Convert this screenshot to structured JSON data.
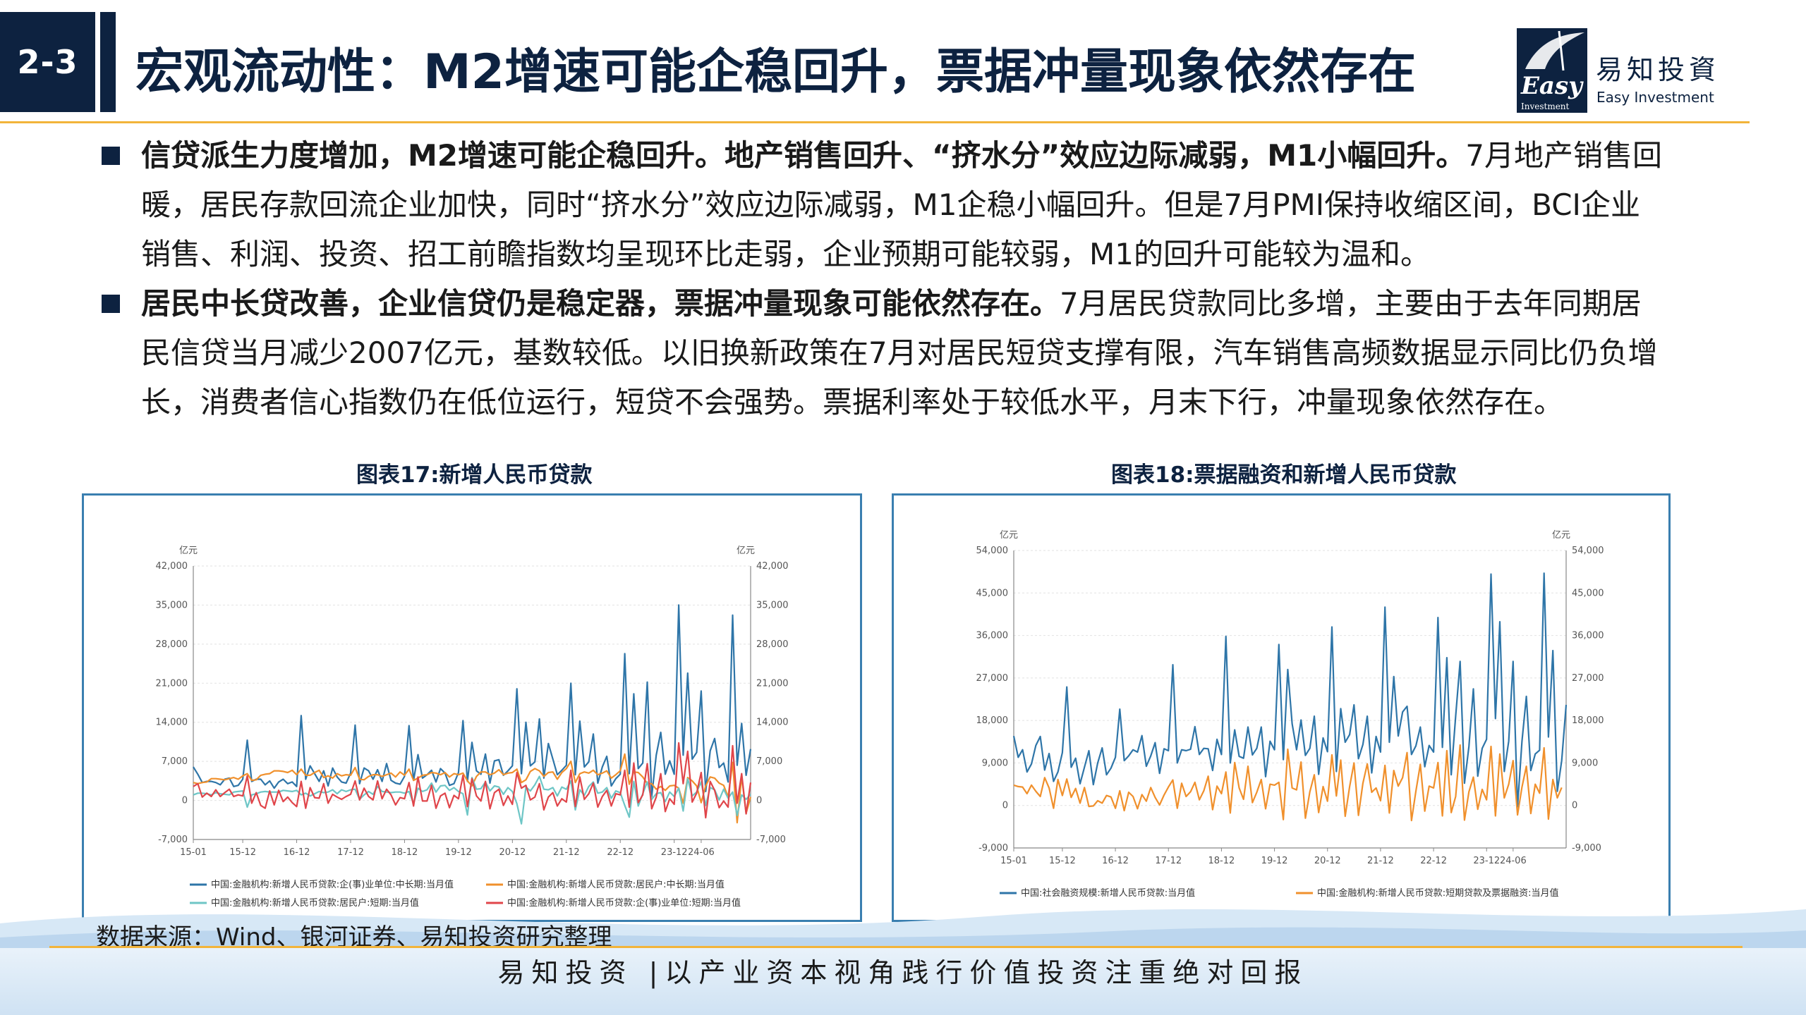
{
  "header": {
    "section": "2-3",
    "title": "宏观流动性：M2增速可能企稳回升，票据冲量现象依然存在",
    "logo_easy": "Easy",
    "logo_investment": "Investment",
    "logo_cn": "易知投資",
    "logo_en": "Easy Investment"
  },
  "bullets": [
    {
      "lead": "信贷派生力度增加，M2增速可能企稳回升。地产销售回升、“挤水分”效应边际减弱，M1小幅回升。",
      "body": "7月地产销售回暖，居民存款回流企业加快，同时“挤水分”效应边际减弱，M1企稳小幅回升。但是7月PMI保持收缩区间，BCI企业销售、利润、投资、招工前瞻指数均呈现环比走弱，企业预期可能较弱，M1的回升可能较为温和。"
    },
    {
      "lead": "居民中长贷改善，企业信贷仍是稳定器，票据冲量现象可能依然存在。",
      "body": "7月居民贷款同比多增，主要由于去年同期居民信贷当月减少2007亿元，基数较低。以旧换新政策在7月对居民短贷支撑有限，汽车销售高频数据显示同比仍负增长，消费者信心指数仍在低位运行，短贷不会强势。票据利率处于较低水平，月末下行，冲量现象依然存在。"
    }
  ],
  "chart1_caption": "图表17:新增人民币贷款",
  "chart2_caption": "图表18:票据融资和新增人民币贷款",
  "source": "数据来源：Wind、银河证券、易知投资研究整理",
  "footer": "易知投资 |以产业资本视角践行价值投资注重绝对回报",
  "chart_data": [
    {
      "type": "line",
      "title": "图表17:新增人民币贷款",
      "unit_left": "亿元",
      "unit_right": "亿元",
      "ylim": [
        -7000,
        42000
      ],
      "yticks": [
        "-7,000",
        "0",
        "7,000",
        "14,000",
        "21,000",
        "28,000",
        "35,000",
        "42,000"
      ],
      "xticks": [
        "15-01",
        "15-12",
        "16-12",
        "17-12",
        "18-12",
        "19-12",
        "20-12",
        "21-12",
        "22-12",
        "23-12",
        "24-06"
      ],
      "colors": [
        "#2e75a8",
        "#f0902c",
        "#6ec6c6",
        "#e0454a"
      ],
      "series": [
        {
          "name": "中国:金融机构:新增人民币贷款:企(事)业单位:中长期:当月值",
          "values": [
            6000,
            4700,
            3200,
            3400,
            3400,
            3200,
            2800,
            3800,
            4000,
            2500,
            2700,
            3800,
            10800,
            3400,
            3800,
            3800,
            2800,
            3500,
            2200,
            3300,
            3800,
            3000,
            3300,
            2500,
            15200,
            3800,
            6200,
            4800,
            3400,
            5300,
            2600,
            5800,
            4200,
            3300,
            3100,
            4900,
            13500,
            3000,
            5800,
            5300,
            3800,
            5500,
            3400,
            6600,
            3600,
            3100,
            2900,
            4300,
            13400,
            3600,
            8200,
            4000,
            4600,
            5400,
            3300,
            5700,
            4900,
            2700,
            3000,
            5000,
            14300,
            3400,
            10400,
            5300,
            4700,
            8300,
            3100,
            7100,
            7300,
            4500,
            5300,
            6200,
            20000,
            4800,
            14000,
            6200,
            6900,
            14600,
            4000,
            10200,
            7400,
            4600,
            5400,
            6300,
            21000,
            4600,
            14200,
            6000,
            6900,
            11900,
            3100,
            6000,
            7900,
            2600,
            3900,
            4700,
            26300,
            4800,
            19100,
            5700,
            6700,
            21200,
            700,
            8100,
            12200,
            4700,
            7100,
            4700,
            35000,
            8100,
            22800,
            7400,
            8600,
            19600,
            1600,
            8900,
            11100,
            5900,
            6700,
            3300,
            33200,
            6300,
            13800,
            4500,
            9200
          ]
        },
        {
          "name": "中国:金融机构:新增人民币贷款:居民户:中长期:当月值",
          "values": [
            3200,
            3000,
            3200,
            3300,
            3900,
            3900,
            3800,
            3700,
            3900,
            4100,
            3800,
            4400,
            4800,
            3600,
            3700,
            4500,
            4700,
            4800,
            5300,
            5300,
            5200,
            5000,
            5400,
            4600,
            5600,
            4500,
            4500,
            5000,
            5400,
            4100,
            4400,
            4000,
            4800,
            4400,
            4600,
            4500,
            5900,
            3800,
            3700,
            4300,
            4600,
            4600,
            4300,
            4600,
            4900,
            4200,
            5100,
            4500,
            5600,
            3600,
            4000,
            4500,
            4600,
            5000,
            4900,
            4600,
            5000,
            4200,
            4800,
            4600,
            4900,
            3500,
            2600,
            4300,
            5100,
            5100,
            4600,
            4900,
            5500,
            4600,
            4900,
            5000,
            5600,
            3200,
            3700,
            5200,
            5700,
            5300,
            4300,
            5000,
            5100,
            3800,
            5000,
            5700,
            7000,
            3200,
            4800,
            5100,
            4900,
            5400,
            4600,
            4900,
            5300,
            4000,
            4600,
            5300,
            8300,
            2900,
            5100,
            5000,
            4200,
            3000,
            3000,
            2000,
            2500,
            1800,
            2600,
            2700,
            2200,
            -500,
            4100,
            3500,
            2600,
            -400,
            2600,
            4200,
            4000,
            3100,
            2700,
            600,
            6800,
            -4000,
            4300,
            -2300,
            600
          ]
        },
        {
          "name": "中国:金融机构:新增人民币贷款:居民户:短期:当月值",
          "values": [
            1000,
            1300,
            1300,
            1200,
            1000,
            1400,
            1200,
            1100,
            1000,
            1500,
            1600,
            1700,
            -1200,
            1000,
            1200,
            1500,
            1600,
            1500,
            1500,
            1500,
            1800,
            1700,
            1600,
            1800,
            1000,
            1300,
            800,
            1200,
            1600,
            1400,
            1500,
            1900,
            1200,
            1900,
            1600,
            1900,
            2000,
            200,
            1000,
            1600,
            1100,
            2500,
            1600,
            1500,
            1400,
            1500,
            1500,
            1300,
            1600,
            -600,
            2200,
            1600,
            1900,
            3100,
            1500,
            2600,
            2700,
            1800,
            2300,
            1600,
            1200,
            -2600,
            4100,
            2000,
            2100,
            3300,
            1700,
            2600,
            2400,
            1100,
            2300,
            1600,
            -600,
            -4200,
            2400,
            1700,
            2800,
            4300,
            2000,
            1900,
            2300,
            800,
            2400,
            2000,
            3500,
            -1700,
            1900,
            900,
            2500,
            3300,
            1300,
            1500,
            2300,
            400,
            1700,
            1400,
            -900,
            -3000,
            3400,
            -1000,
            1200,
            3300,
            200,
            1200,
            1400,
            -200,
            1500,
            700,
            2200,
            -1900,
            3900,
            800,
            1500,
            3300,
            -900,
            2300,
            1900,
            100,
            2000,
            400,
            1500,
            -2700,
            1000,
            200,
            1100
          ]
        },
        {
          "name": "中国:金融机构:新增人民币贷款:企(事)业单位:短期:当月值",
          "values": [
            2500,
            3000,
            600,
            1300,
            700,
            1900,
            700,
            1400,
            2000,
            700,
            1000,
            800,
            4400,
            -500,
            1400,
            -900,
            -1400,
            1700,
            -800,
            1800,
            -200,
            600,
            -400,
            -1100,
            3400,
            -1400,
            2300,
            500,
            400,
            3000,
            -500,
            1100,
            600,
            200,
            700,
            1100,
            3500,
            100,
            2200,
            700,
            100,
            3500,
            300,
            2000,
            1000,
            -800,
            500,
            300,
            3200,
            -1000,
            4200,
            -100,
            -100,
            2700,
            -1400,
            800,
            1300,
            -1300,
            900,
            300,
            4500,
            -1100,
            3900,
            800,
            -100,
            3400,
            -1500,
            1400,
            2000,
            -900,
            800,
            -700,
            5000,
            2200,
            2700,
            100,
            600,
            3000,
            -1700,
            600,
            1400,
            -1000,
            300,
            -300,
            5400,
            -1100,
            4200,
            200,
            1200,
            3100,
            -1200,
            700,
            1800,
            -1000,
            1200,
            1000,
            5400,
            -1200,
            6700,
            -400,
            1000,
            6600,
            -1500,
            600,
            4800,
            -2000,
            300,
            -700,
            10300,
            3000,
            8800,
            -300,
            1300,
            5000,
            -3100,
            3400,
            1800,
            -1300,
            -100,
            -1200,
            9800,
            -500,
            4800,
            -2400,
            3200
          ]
        }
      ]
    },
    {
      "type": "line",
      "title": "图表18:票据融资和新增人民币贷款",
      "unit_left": "亿元",
      "unit_right": "亿元",
      "ylim": [
        -9000,
        54000
      ],
      "yticks": [
        "-9,000",
        "0",
        "9,000",
        "18,000",
        "27,000",
        "36,000",
        "45,000",
        "54,000"
      ],
      "xticks": [
        "15-01",
        "15-12",
        "16-12",
        "17-12",
        "18-12",
        "19-12",
        "20-12",
        "21-12",
        "22-12",
        "23-12",
        "24-06"
      ],
      "colors": [
        "#2e75a8",
        "#f0902c"
      ],
      "series": [
        {
          "name": "中国:社会融资规模:新增人民币贷款:当月值",
          "values": [
            14700,
            10200,
            11800,
            7100,
            8800,
            12700,
            14600,
            7500,
            11000,
            5100,
            7100,
            11200,
            25100,
            8100,
            10000,
            4600,
            8100,
            11600,
            4400,
            9000,
            12200,
            6500,
            7900,
            10200,
            20400,
            9500,
            10500,
            11800,
            11300,
            14800,
            8300,
            10500,
            13300,
            6800,
            12000,
            11600,
            29800,
            9000,
            11800,
            11600,
            11900,
            16700,
            10800,
            12100,
            12000,
            7400,
            14000,
            10800,
            35800,
            9000,
            16000,
            10400,
            10000,
            16600,
            10700,
            12100,
            16600,
            6100,
            13600,
            11800,
            34100,
            9700,
            28800,
            17300,
            11800,
            18100,
            10600,
            12100,
            18900,
            6600,
            14300,
            11400,
            37800,
            7200,
            20500,
            13400,
            15000,
            21300,
            9900,
            12900,
            18900,
            6900,
            14600,
            11300,
            42000,
            13400,
            27300,
            14700,
            19800,
            21000,
            10800,
            12600,
            16600,
            8200,
            12700,
            11300,
            39800,
            12300,
            31300,
            6500,
            18900,
            30500,
            4700,
            12500,
            24700,
            6200,
            12100,
            14000,
            49000,
            18400,
            38900,
            7200,
            13600,
            30500,
            -300,
            13600,
            23100,
            7400,
            10900,
            11700,
            49200,
            14500,
            32800,
            3000,
            9500,
            21300
          ]
        },
        {
          "name": "中国:金融机构:新增人民币贷款:短期贷款及票据融资:当月值",
          "values": [
            4300,
            4000,
            3900,
            2500,
            4300,
            3000,
            1900,
            5900,
            3700,
            -600,
            5500,
            2100,
            5600,
            1700,
            3600,
            500,
            3800,
            -200,
            -100,
            1000,
            500,
            2100,
            1800,
            -600,
            3100,
            -1100,
            2800,
            1900,
            -700,
            2300,
            900,
            3800,
            1700,
            100,
            2200,
            3900,
            5400,
            -600,
            4700,
            1900,
            2900,
            4900,
            1200,
            3100,
            6200,
            -900,
            4100,
            2500,
            7100,
            -1600,
            9100,
            3700,
            1300,
            8300,
            600,
            2800,
            5500,
            -700,
            4500,
            4300,
            4900,
            -3000,
            11900,
            3700,
            3300,
            9200,
            -2700,
            2900,
            6500,
            -1500,
            4000,
            900,
            10700,
            2000,
            9600,
            -2300,
            4000,
            9000,
            -2100,
            4700,
            8800,
            2800,
            3700,
            1000,
            8500,
            -1600,
            7400,
            4100,
            5900,
            11200,
            -3200,
            3000,
            8700,
            -1200,
            4100,
            3700,
            9100,
            -2200,
            11600,
            -1500,
            1900,
            12800,
            -3100,
            2900,
            6000,
            -800,
            3400,
            1200,
            12500,
            -2200,
            10900,
            1600,
            4500,
            9500,
            -2000,
            3900,
            8300,
            -1700,
            4500,
            2600,
            12200,
            -2900,
            5500,
            1600,
            3800
          ]
        }
      ]
    }
  ]
}
